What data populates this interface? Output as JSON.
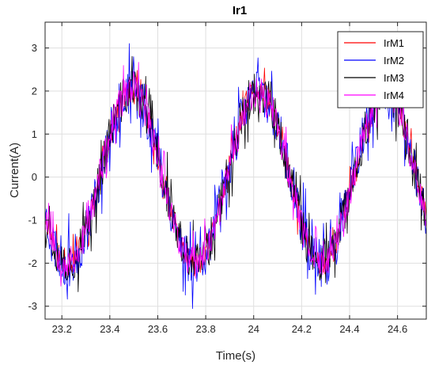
{
  "chart_data": {
    "type": "line",
    "title": "Ir1",
    "xlabel": "Time(s)",
    "ylabel": "Current(A)",
    "xlim": [
      23.13,
      24.72
    ],
    "ylim": [
      -3.3,
      3.6
    ],
    "xticks": [
      23.2,
      23.4,
      23.6,
      23.8,
      24.0,
      24.2,
      24.4,
      24.6
    ],
    "xtick_labels": [
      "23.2",
      "23.4",
      "23.6",
      "23.8",
      "24",
      "24.2",
      "24.4",
      "24.6"
    ],
    "yticks": [
      -3,
      -2,
      -1,
      0,
      1,
      2,
      3
    ],
    "ytick_labels": [
      "-3",
      "-2",
      "-1",
      "0",
      "1",
      "2",
      "3"
    ],
    "grid": true,
    "legend_position": "top-right",
    "waveform": {
      "frequency_hz": 1.89,
      "amplitude_a": 2.0,
      "peak_times_s": [
        23.49,
        24.02,
        24.55
      ],
      "trough_times_s": [
        23.2,
        23.76,
        24.29
      ],
      "sample_step_s": 0.003
    },
    "series": [
      {
        "name": "IrM1",
        "color": "#ff0000",
        "noise": 0.3,
        "seed": 11
      },
      {
        "name": "IrM2",
        "color": "#0000ff",
        "noise": 0.55,
        "seed": 23
      },
      {
        "name": "IrM3",
        "color": "#000000",
        "noise": 0.5,
        "seed": 37
      },
      {
        "name": "IrM4",
        "color": "#ff00ff",
        "noise": 0.38,
        "seed": 53
      }
    ]
  }
}
